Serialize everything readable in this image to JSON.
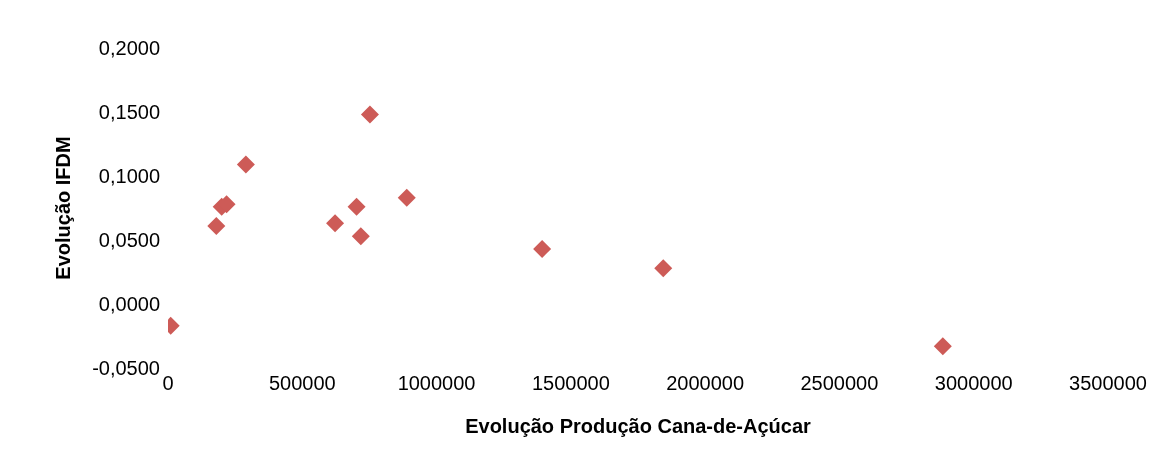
{
  "chart_data": {
    "type": "scatter",
    "xlabel": "Evolução Produção Cana-de-Açúcar",
    "ylabel": "Evolução IFDM",
    "x": [
      10000,
      180000,
      200000,
      218000,
      290000,
      622000,
      702000,
      718000,
      752000,
      889000,
      1393000,
      1844000,
      2885000
    ],
    "values": [
      -0.017,
      0.061,
      0.076,
      0.078,
      0.109,
      0.063,
      0.076,
      0.053,
      0.148,
      0.083,
      0.043,
      0.028,
      -0.033
    ],
    "color": "#cd5b57",
    "marker": "diamond",
    "grid": false,
    "legend": false,
    "xlim": [
      0,
      3500000
    ],
    "xticks": [
      0,
      500000,
      1000000,
      1500000,
      2000000,
      2500000,
      3000000,
      3500000
    ],
    "ylim": [
      -0.05,
      0.2
    ],
    "yticks": [
      {
        "value": -0.05,
        "label": "-0,0500"
      },
      {
        "value": 0,
        "label": "0,0000"
      },
      {
        "value": 0.05,
        "label": "0,0500"
      },
      {
        "value": 0.1,
        "label": "0,1000"
      },
      {
        "value": 0.15,
        "label": "0,1500"
      },
      {
        "value": 0.2,
        "label": "0,2000"
      }
    ]
  }
}
